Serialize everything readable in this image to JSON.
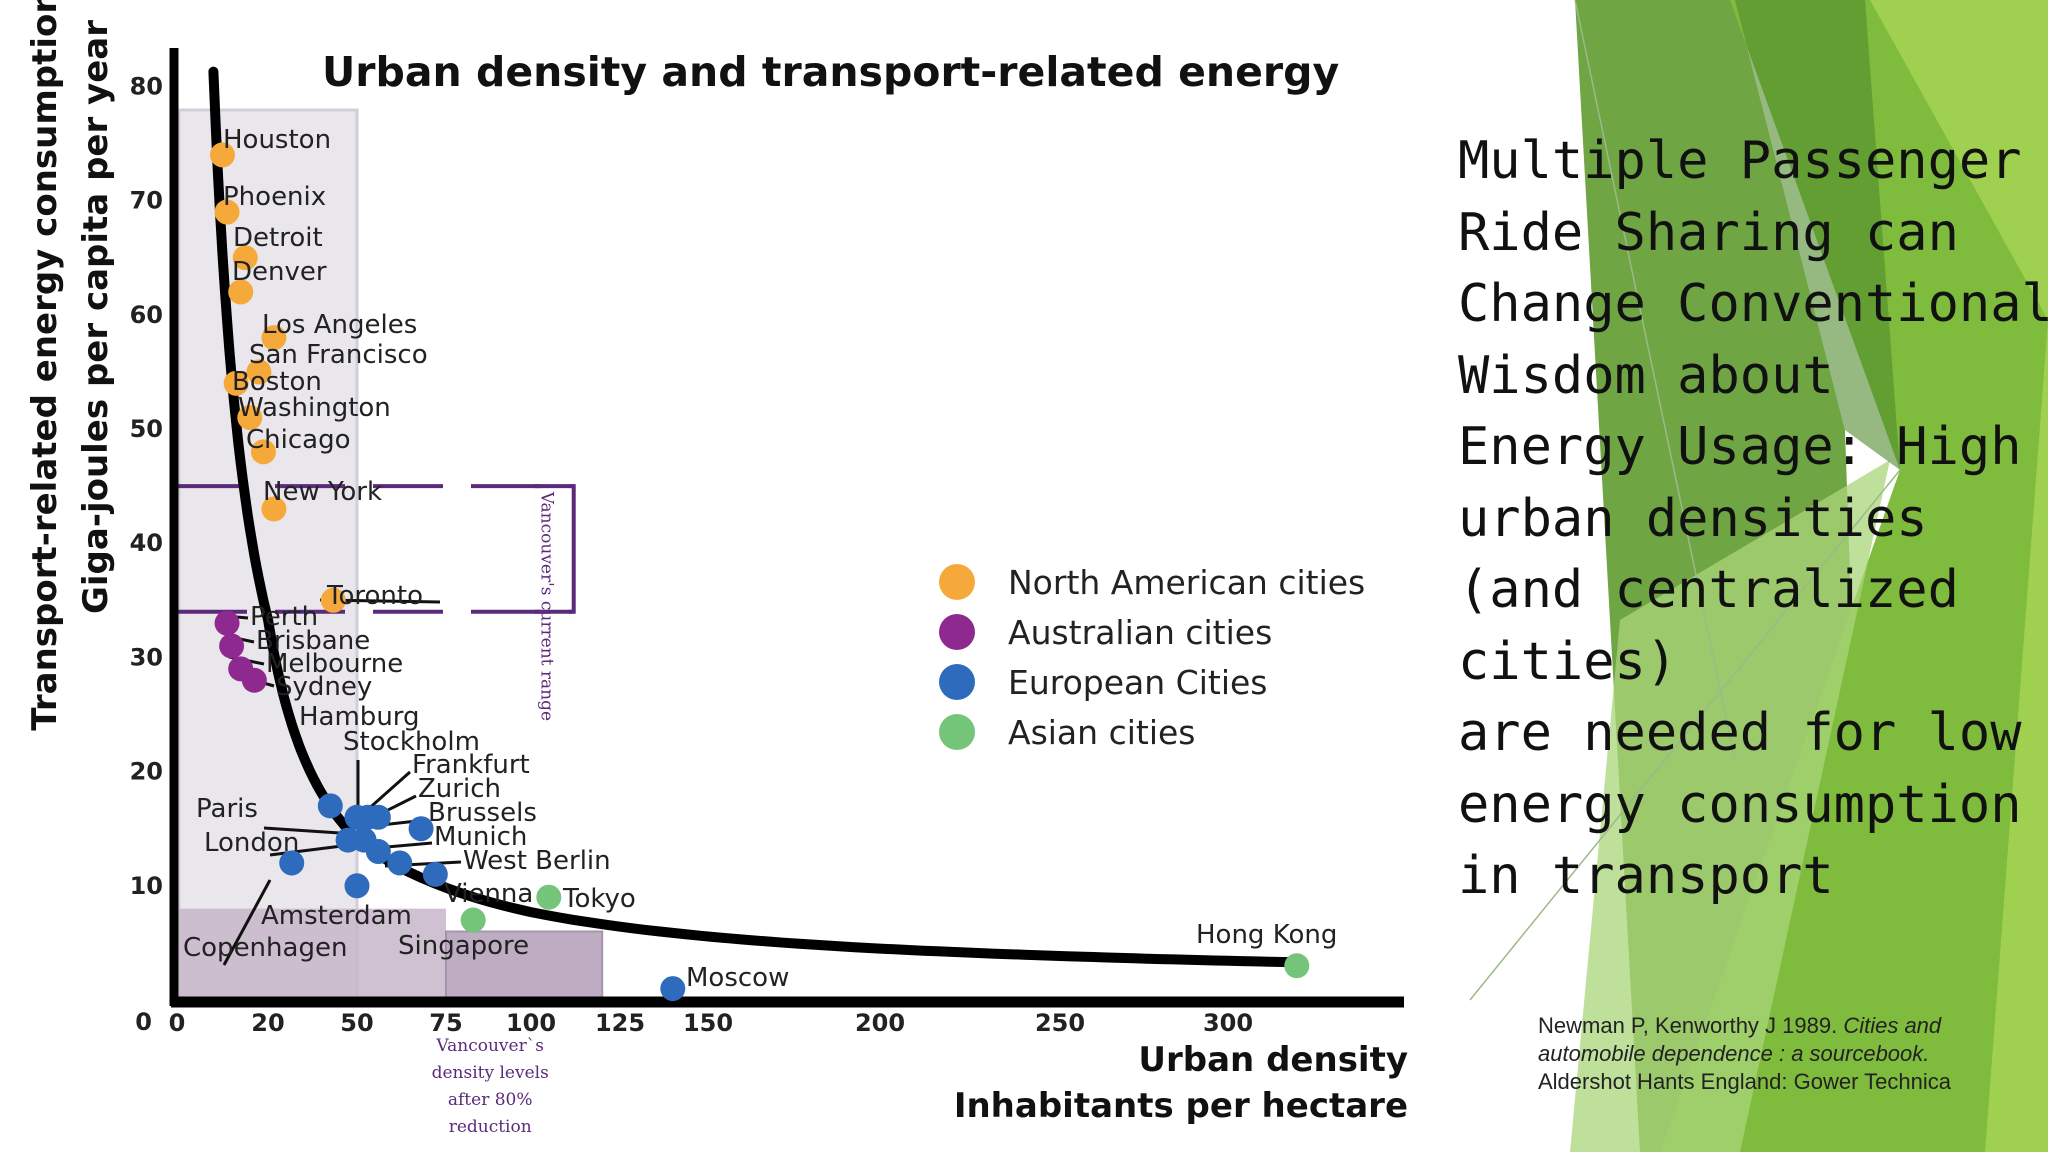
{
  "chart_data": {
    "type": "scatter",
    "title": "Urban density and transport-related energy",
    "ylabel_line1": "Transport-related energy consumption",
    "ylabel_line2": "Giga-joules per capita per year",
    "xlabel_line1": "Urban density",
    "xlabel_line2": "Inhabitants per hectare",
    "xlim": [
      0,
      350
    ],
    "ylim": [
      0,
      80
    ],
    "x_ticks": [
      "0",
      "20",
      "50",
      "75",
      "100",
      "125",
      "150",
      "200",
      "250",
      "300"
    ],
    "y_ticks": [
      "0",
      "10",
      "20",
      "30",
      "40",
      "50",
      "60",
      "70",
      "80"
    ],
    "legend_position": "center-right",
    "series": [
      {
        "name": "North American cities",
        "color": "#f6a93b",
        "points": [
          {
            "city": "Houston",
            "x": 10,
            "y": 74
          },
          {
            "city": "Phoenix",
            "x": 11,
            "y": 69
          },
          {
            "city": "Detroit",
            "x": 15,
            "y": 65
          },
          {
            "city": "Denver",
            "x": 14,
            "y": 62
          },
          {
            "city": "Los Angeles",
            "x": 22,
            "y": 58
          },
          {
            "city": "San Francisco",
            "x": 18,
            "y": 55
          },
          {
            "city": "Boston",
            "x": 13,
            "y": 54
          },
          {
            "city": "Washington",
            "x": 16,
            "y": 51
          },
          {
            "city": "Chicago",
            "x": 19,
            "y": 48
          },
          {
            "city": "New York",
            "x": 22,
            "y": 43
          },
          {
            "city": "Toronto",
            "x": 42,
            "y": 35
          }
        ]
      },
      {
        "name": "Australian cities",
        "color": "#8e2a8f",
        "points": [
          {
            "city": "Perth",
            "x": 11,
            "y": 33
          },
          {
            "city": "Brisbane",
            "x": 12,
            "y": 31
          },
          {
            "city": "Melbourne",
            "x": 14,
            "y": 29
          },
          {
            "city": "Sydney",
            "x": 17,
            "y": 28
          }
        ]
      },
      {
        "name": "European Cities",
        "color": "#2e6bbd",
        "points": [
          {
            "city": "Hamburg",
            "x": 41,
            "y": 17
          },
          {
            "city": "Stockholm",
            "x": 50,
            "y": 16
          },
          {
            "city": "Frankfurt",
            "x": 53,
            "y": 16
          },
          {
            "city": "Zurich",
            "x": 56,
            "y": 16
          },
          {
            "city": "Brussels",
            "x": 68,
            "y": 15
          },
          {
            "city": "Munich",
            "x": 56,
            "y": 13
          },
          {
            "city": "West Berlin",
            "x": 62,
            "y": 12
          },
          {
            "city": "Vienna",
            "x": 72,
            "y": 11
          },
          {
            "city": "Paris",
            "x": 47,
            "y": 14
          },
          {
            "city": "London",
            "x": 52,
            "y": 14
          },
          {
            "city": "Amsterdam",
            "x": 50,
            "y": 10
          },
          {
            "city": "Copenhagen",
            "x": 28,
            "y": 12
          },
          {
            "city": "Moscow",
            "x": 140,
            "y": 1
          }
        ]
      },
      {
        "name": "Asian cities",
        "color": "#74c47a",
        "points": [
          {
            "city": "Tokyo",
            "x": 105,
            "y": 9
          },
          {
            "city": "Singapore",
            "x": 83,
            "y": 7
          },
          {
            "city": "Hong Kong",
            "x": 320,
            "y": 3
          }
        ]
      }
    ],
    "trend_curve": true,
    "annotations": {
      "vancouver_current": "Vancouver's current range",
      "vancouver_future": [
        "Vancouver`s",
        "density levels",
        "after 80%",
        "reduction"
      ]
    }
  },
  "headline_lines": [
    "Multiple Passenger",
    "Ride Sharing can",
    "Change Conventional",
    "Wisdom about",
    "Energy Usage: High",
    "urban densities",
    "(and centralized",
    "cities)",
    "are needed for low",
    "energy consumption",
    "in transport"
  ],
  "citation": {
    "line1_prefix": "Newman P, Kenworthy J 1989. ",
    "line1_italic": "Cities and",
    "line2_italic": "automobile dependence : a sourcebook.",
    "line3": "Aldershot Hants England: Gower Technica"
  },
  "colors": {
    "accent_green_dark": "#5e9a2f",
    "accent_green": "#7cb93e",
    "accent_green_light": "#a6d36a"
  }
}
